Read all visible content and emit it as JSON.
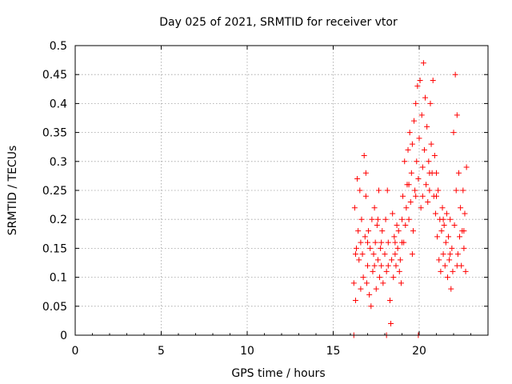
{
  "chart_data": {
    "type": "scatter",
    "title": "Day 025 of 2021, SRMTID for receiver vtor",
    "xlabel": "GPS time / hours",
    "ylabel": "SRMTID / TECUs",
    "xlim": [
      0,
      24
    ],
    "ylim": [
      0,
      0.5
    ],
    "xticks": [
      "0",
      "5",
      "10",
      "15",
      "20"
    ],
    "yticks": [
      "0",
      "0.05",
      "0.1",
      "0.15",
      "0.2",
      "0.25",
      "0.3",
      "0.35",
      "0.4",
      "0.45",
      "0.5"
    ],
    "grid": true,
    "legend": "none",
    "marker": "plus",
    "color": "#ff0000",
    "points": [
      [
        16.2,
        0.09
      ],
      [
        16.25,
        0.22
      ],
      [
        16.3,
        0.06
      ],
      [
        16.35,
        0.15
      ],
      [
        16.4,
        0.27
      ],
      [
        16.45,
        0.18
      ],
      [
        16.5,
        0.13
      ],
      [
        16.55,
        0.25
      ],
      [
        16.6,
        0.08
      ],
      [
        16.65,
        0.2
      ],
      [
        16.7,
        0.14
      ],
      [
        16.75,
        0.1
      ],
      [
        16.8,
        0.31
      ],
      [
        16.85,
        0.17
      ],
      [
        16.9,
        0.24
      ],
      [
        16.95,
        0.09
      ],
      [
        17.0,
        0.12
      ],
      [
        17.05,
        0.18
      ],
      [
        17.1,
        0.07
      ],
      [
        17.15,
        0.15
      ],
      [
        17.2,
        0.05
      ],
      [
        17.25,
        0.2
      ],
      [
        17.3,
        0.11
      ],
      [
        17.35,
        0.14
      ],
      [
        17.4,
        0.22
      ],
      [
        17.45,
        0.16
      ],
      [
        17.5,
        0.08
      ],
      [
        17.55,
        0.19
      ],
      [
        17.6,
        0.13
      ],
      [
        17.65,
        0.25
      ],
      [
        17.7,
        0.1
      ],
      [
        17.75,
        0.15
      ],
      [
        17.8,
        0.12
      ],
      [
        17.85,
        0.18
      ],
      [
        17.9,
        0.09
      ],
      [
        18.0,
        0.14
      ],
      [
        18.05,
        0.2
      ],
      [
        18.1,
        0.11
      ],
      [
        18.15,
        0.25
      ],
      [
        18.2,
        0.16
      ],
      [
        18.3,
        0.06
      ],
      [
        18.35,
        0.02
      ],
      [
        18.4,
        0.13
      ],
      [
        18.45,
        0.21
      ],
      [
        18.5,
        0.1
      ],
      [
        18.55,
        0.17
      ],
      [
        18.6,
        0.14
      ],
      [
        18.65,
        0.12
      ],
      [
        18.7,
        0.19
      ],
      [
        18.75,
        0.15
      ],
      [
        18.8,
        0.18
      ],
      [
        18.85,
        0.11
      ],
      [
        18.9,
        0.13
      ],
      [
        18.95,
        0.09
      ],
      [
        19.0,
        0.2
      ],
      [
        19.05,
        0.24
      ],
      [
        19.1,
        0.16
      ],
      [
        19.15,
        0.3
      ],
      [
        19.2,
        0.19
      ],
      [
        19.25,
        0.22
      ],
      [
        19.3,
        0.26
      ],
      [
        19.35,
        0.32
      ],
      [
        19.4,
        0.2
      ],
      [
        19.45,
        0.35
      ],
      [
        19.5,
        0.23
      ],
      [
        19.55,
        0.28
      ],
      [
        19.6,
        0.33
      ],
      [
        19.65,
        0.18
      ],
      [
        19.7,
        0.37
      ],
      [
        19.75,
        0.25
      ],
      [
        19.8,
        0.4
      ],
      [
        19.85,
        0.3
      ],
      [
        19.9,
        0.43
      ],
      [
        19.95,
        0.27
      ],
      [
        20.0,
        0.34
      ],
      [
        20.05,
        0.44
      ],
      [
        20.1,
        0.22
      ],
      [
        20.15,
        0.38
      ],
      [
        20.2,
        0.29
      ],
      [
        20.25,
        0.47
      ],
      [
        20.3,
        0.32
      ],
      [
        20.35,
        0.41
      ],
      [
        20.4,
        0.26
      ],
      [
        20.45,
        0.36
      ],
      [
        20.5,
        0.23
      ],
      [
        20.55,
        0.3
      ],
      [
        20.6,
        0.25
      ],
      [
        20.65,
        0.4
      ],
      [
        20.7,
        0.33
      ],
      [
        20.75,
        0.28
      ],
      [
        20.8,
        0.44
      ],
      [
        20.85,
        0.24
      ],
      [
        20.9,
        0.31
      ],
      [
        20.95,
        0.21
      ],
      [
        21.0,
        0.28
      ],
      [
        21.05,
        0.17
      ],
      [
        21.1,
        0.25
      ],
      [
        21.15,
        0.13
      ],
      [
        21.2,
        0.2
      ],
      [
        21.25,
        0.11
      ],
      [
        21.3,
        0.18
      ],
      [
        21.35,
        0.22
      ],
      [
        21.4,
        0.14
      ],
      [
        21.45,
        0.19
      ],
      [
        21.5,
        0.12
      ],
      [
        21.55,
        0.16
      ],
      [
        21.6,
        0.21
      ],
      [
        21.65,
        0.1
      ],
      [
        21.7,
        0.17
      ],
      [
        21.75,
        0.13
      ],
      [
        21.8,
        0.2
      ],
      [
        21.85,
        0.08
      ],
      [
        21.9,
        0.15
      ],
      [
        21.95,
        0.11
      ],
      [
        22.0,
        0.35
      ],
      [
        22.05,
        0.19
      ],
      [
        22.1,
        0.45
      ],
      [
        22.15,
        0.25
      ],
      [
        22.2,
        0.38
      ],
      [
        22.25,
        0.14
      ],
      [
        22.3,
        0.28
      ],
      [
        22.35,
        0.17
      ],
      [
        22.4,
        0.22
      ],
      [
        22.45,
        0.12
      ],
      [
        22.5,
        0.18
      ],
      [
        22.55,
        0.25
      ],
      [
        22.6,
        0.15
      ],
      [
        22.65,
        0.21
      ],
      [
        22.7,
        0.11
      ],
      [
        22.75,
        0.29
      ],
      [
        16.3,
        0.14
      ],
      [
        16.6,
        0.16
      ],
      [
        17.0,
        0.16
      ],
      [
        17.4,
        0.12
      ],
      [
        17.8,
        0.16
      ],
      [
        18.2,
        0.12
      ],
      [
        18.6,
        0.16
      ],
      [
        19.0,
        0.16
      ],
      [
        19.4,
        0.26
      ],
      [
        19.8,
        0.24
      ],
      [
        20.2,
        0.24
      ],
      [
        20.6,
        0.28
      ],
      [
        21.0,
        0.24
      ],
      [
        21.4,
        0.2
      ],
      [
        21.8,
        0.14
      ],
      [
        22.2,
        0.12
      ],
      [
        22.6,
        0.18
      ],
      [
        16.9,
        0.28
      ],
      [
        17.6,
        0.2
      ],
      [
        19.6,
        0.14
      ],
      [
        16.2,
        0.0
      ],
      [
        18.1,
        0.0
      ],
      [
        19.95,
        0.0
      ]
    ]
  }
}
